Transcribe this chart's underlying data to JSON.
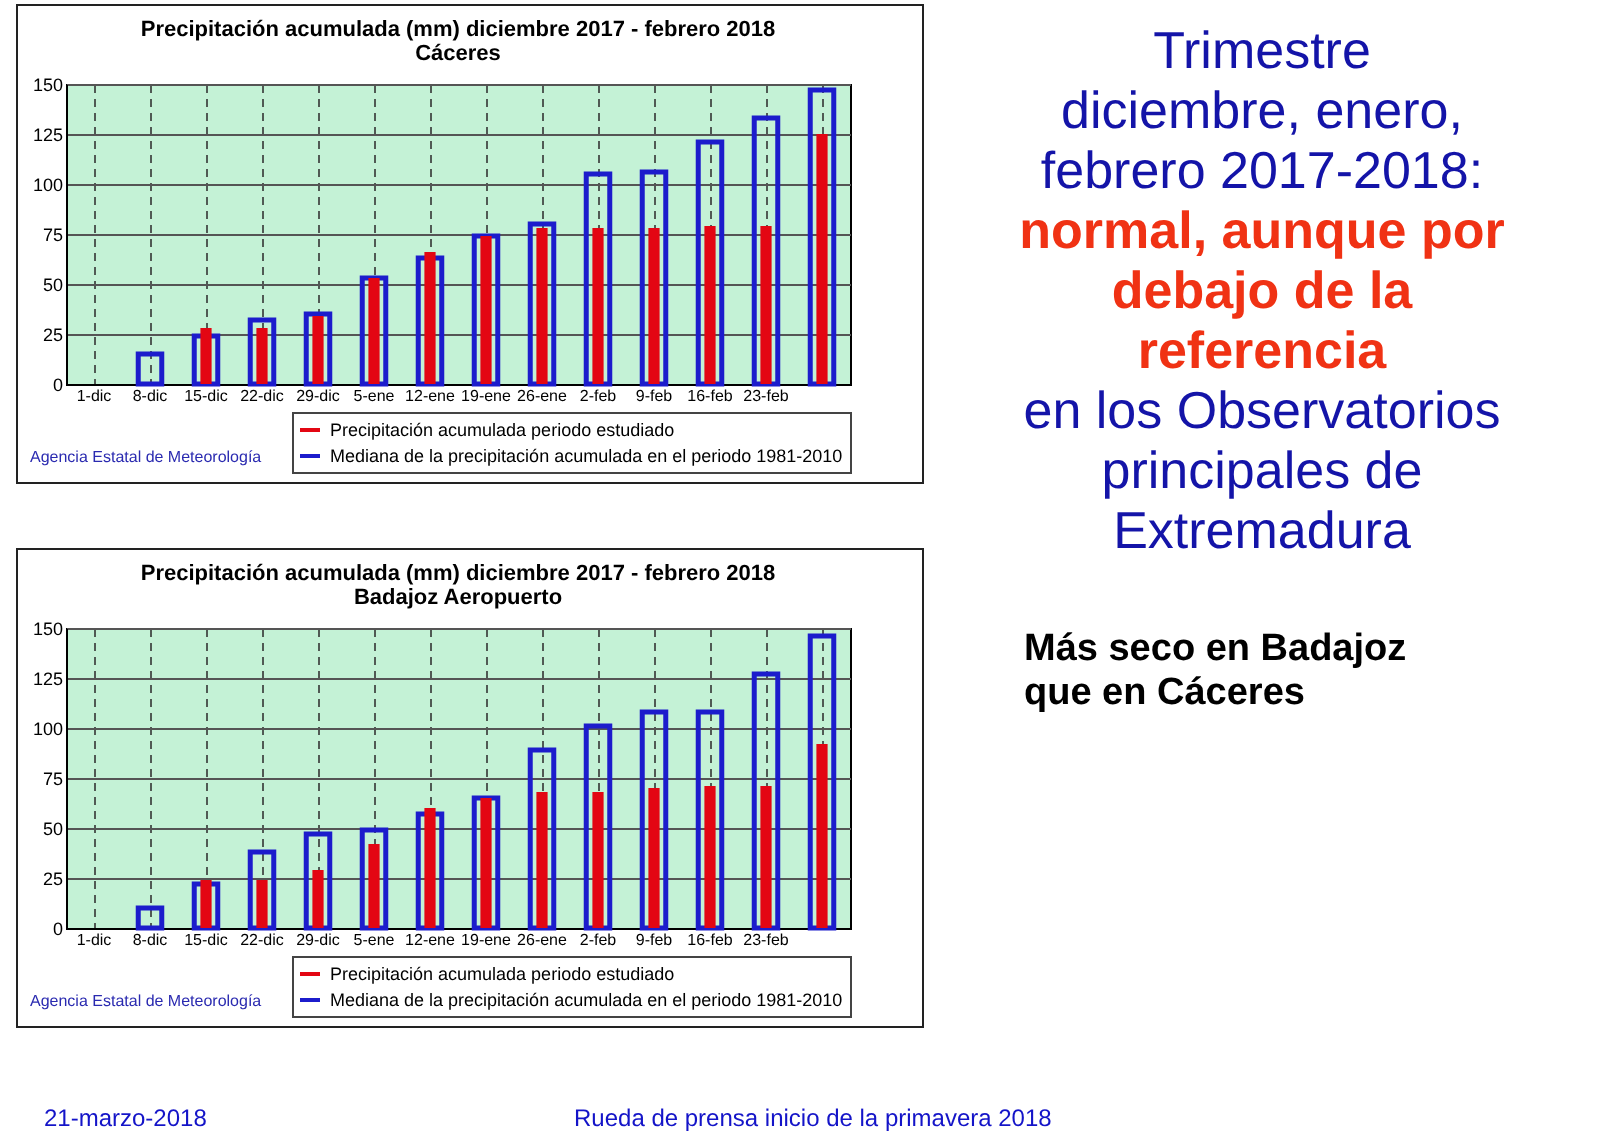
{
  "chart_data": [
    {
      "type": "bar",
      "title": "Precipitación acumulada (mm) diciembre 2017 - febrero 2018",
      "subtitle": "Cáceres",
      "categories": [
        "1-dic",
        "8-dic",
        "15-dic",
        "22-dic",
        "29-dic",
        "5-ene",
        "12-ene",
        "19-ene",
        "26-ene",
        "2-feb",
        "9-feb",
        "16-feb",
        "23-feb",
        null
      ],
      "series": [
        {
          "name": "Precipitación acumulada periodo estudiado",
          "color": "#e30613",
          "values": [
            null,
            0,
            28,
            28,
            34,
            53,
            66,
            74,
            78,
            78,
            78,
            79,
            79,
            125
          ]
        },
        {
          "name": "Mediana de la precipitación acumulada en el periodo 1981-2010",
          "color": "#1c1ccc",
          "values": [
            null,
            15,
            24,
            32,
            35,
            53,
            63,
            74,
            80,
            105,
            106,
            121,
            133,
            147
          ]
        }
      ],
      "ylim": [
        0,
        150
      ],
      "yticks": [
        0,
        25,
        50,
        75,
        100,
        125,
        150
      ],
      "grid": true,
      "legend": "bottom",
      "annotations": [
        "Agencia Estatal de Meteorología"
      ]
    },
    {
      "type": "bar",
      "title": "Precipitación acumulada (mm) diciembre 2017 - febrero 2018",
      "subtitle": "Badajoz Aeropuerto",
      "categories": [
        "1-dic",
        "8-dic",
        "15-dic",
        "22-dic",
        "29-dic",
        "5-ene",
        "12-ene",
        "19-ene",
        "26-ene",
        "2-feb",
        "9-feb",
        "16-feb",
        "23-feb",
        null
      ],
      "series": [
        {
          "name": "Precipitación acumulada periodo estudiado",
          "color": "#e30613",
          "values": [
            null,
            0,
            24,
            24,
            29,
            42,
            60,
            65,
            68,
            68,
            70,
            71,
            71,
            92
          ]
        },
        {
          "name": "Mediana de la precipitación acumulada en el periodo 1981-2010",
          "color": "#1c1ccc",
          "values": [
            null,
            10,
            22,
            38,
            47,
            49,
            57,
            65,
            89,
            101,
            108,
            108,
            127,
            146
          ]
        }
      ],
      "ylim": [
        0,
        150
      ],
      "yticks": [
        0,
        25,
        50,
        75,
        100,
        125,
        150
      ],
      "grid": true,
      "legend": "bottom",
      "annotations": [
        "Agencia Estatal de Meteorología"
      ]
    },
    {
      "type": "other",
      "annotations": [
        "Trimestre",
        "diciembre, enero,",
        "febrero 2017-2018:",
        "normal, aunque por",
        "debajo de la",
        "referencia",
        "en los Observatorios",
        "principales de",
        "Extremadura",
        "Más seco en Badajoz",
        "que en Cáceres",
        "21-marzo-2018",
        "Rueda de prensa inicio de la primavera 2018"
      ]
    }
  ]
}
